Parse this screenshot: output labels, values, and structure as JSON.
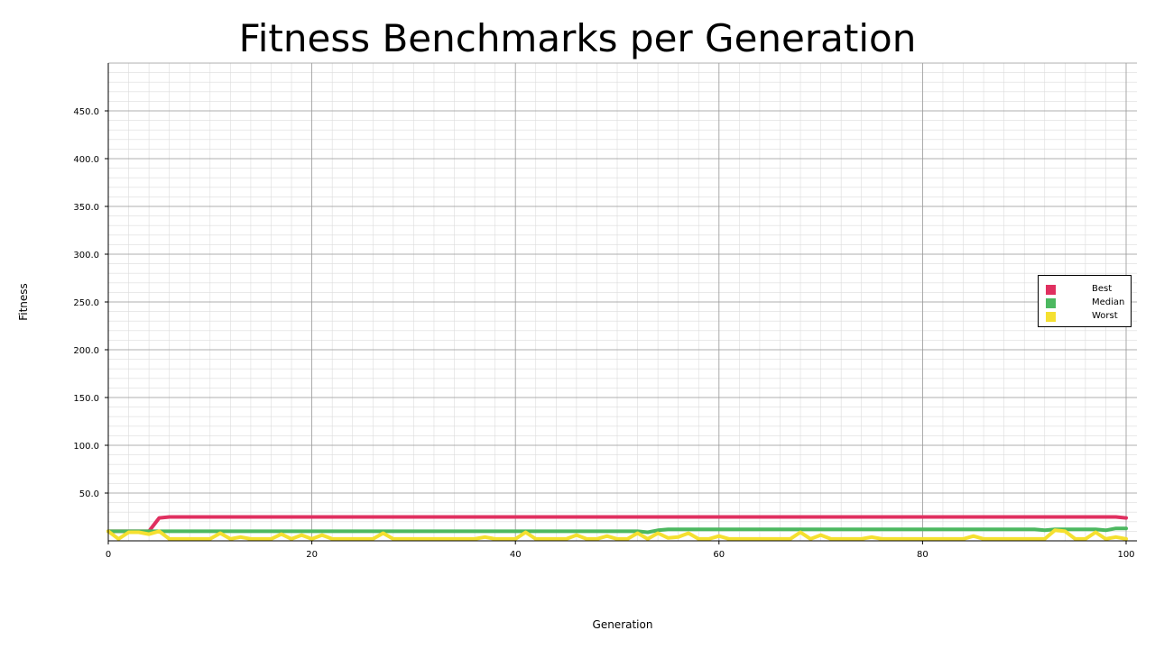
{
  "chart_data": {
    "type": "line",
    "title": "Fitness Benchmarks per Generation",
    "xlabel": "Generation",
    "ylabel": "Fitness",
    "xlim": [
      0,
      101
    ],
    "ylim": [
      0,
      500
    ],
    "xticks": [
      0,
      20,
      40,
      60,
      80,
      100
    ],
    "xtick_labels": [
      "0",
      "20",
      "40",
      "60",
      "80",
      "100"
    ],
    "yticks": [
      50,
      100,
      150,
      200,
      250,
      300,
      350,
      400,
      450
    ],
    "ytick_labels": [
      "50.0",
      "100.0",
      "150.0",
      "200.0",
      "250.0",
      "300.0",
      "350.0",
      "400.0",
      "450.0"
    ],
    "grid": true,
    "legend_position": "right",
    "series": [
      {
        "name": "Best",
        "color": "#e03060",
        "values": [
          10,
          10,
          10,
          10,
          10,
          24,
          25,
          25,
          25,
          25,
          25,
          25,
          25,
          25,
          25,
          25,
          25,
          25,
          25,
          25,
          25,
          25,
          25,
          25,
          25,
          25,
          25,
          25,
          25,
          25,
          25,
          25,
          25,
          25,
          25,
          25,
          25,
          25,
          25,
          25,
          25,
          25,
          25,
          25,
          25,
          25,
          25,
          25,
          25,
          25,
          25,
          25,
          25,
          25,
          25,
          25,
          25,
          25,
          25,
          25,
          25,
          25,
          25,
          25,
          25,
          25,
          25,
          25,
          25,
          25,
          25,
          25,
          25,
          25,
          25,
          25,
          25,
          25,
          25,
          25,
          25,
          25,
          25,
          25,
          25,
          25,
          25,
          25,
          25,
          25,
          25,
          25,
          25,
          25,
          25,
          25,
          25,
          25,
          25,
          25,
          24
        ]
      },
      {
        "name": "Median",
        "color": "#4cb860",
        "values": [
          10,
          10,
          10,
          10,
          10,
          10,
          10,
          10,
          10,
          10,
          10,
          10,
          10,
          10,
          10,
          10,
          10,
          10,
          10,
          10,
          10,
          10,
          10,
          10,
          10,
          10,
          10,
          10,
          10,
          10,
          10,
          10,
          10,
          10,
          10,
          10,
          10,
          10,
          10,
          10,
          10,
          10,
          10,
          10,
          10,
          10,
          10,
          10,
          10,
          10,
          10,
          10,
          10,
          9,
          11,
          12,
          12,
          12,
          12,
          12,
          12,
          12,
          12,
          12,
          12,
          12,
          12,
          12,
          12,
          12,
          12,
          12,
          12,
          12,
          12,
          12,
          12,
          12,
          12,
          12,
          12,
          12,
          12,
          12,
          12,
          12,
          12,
          12,
          12,
          12,
          12,
          12,
          11,
          12,
          12,
          12,
          12,
          12,
          11,
          13,
          13
        ]
      },
      {
        "name": "Worst",
        "color": "#f5e030",
        "values": [
          10,
          2,
          9,
          9,
          7,
          10,
          2,
          2,
          2,
          2,
          2,
          8,
          2,
          4,
          2,
          2,
          2,
          7,
          2,
          6,
          2,
          6,
          2,
          2,
          2,
          2,
          2,
          8,
          2,
          2,
          2,
          2,
          2,
          2,
          2,
          2,
          2,
          4,
          2,
          2,
          2,
          9,
          2,
          2,
          2,
          2,
          6,
          2,
          2,
          5,
          2,
          2,
          8,
          2,
          8,
          3,
          4,
          8,
          2,
          2,
          5,
          2,
          2,
          2,
          2,
          2,
          2,
          2,
          9,
          2,
          6,
          2,
          2,
          2,
          2,
          4,
          2,
          2,
          2,
          2,
          2,
          2,
          2,
          2,
          2,
          5,
          2,
          2,
          2,
          2,
          2,
          2,
          2,
          11,
          10,
          2,
          2,
          9,
          2,
          4,
          2
        ]
      }
    ]
  }
}
